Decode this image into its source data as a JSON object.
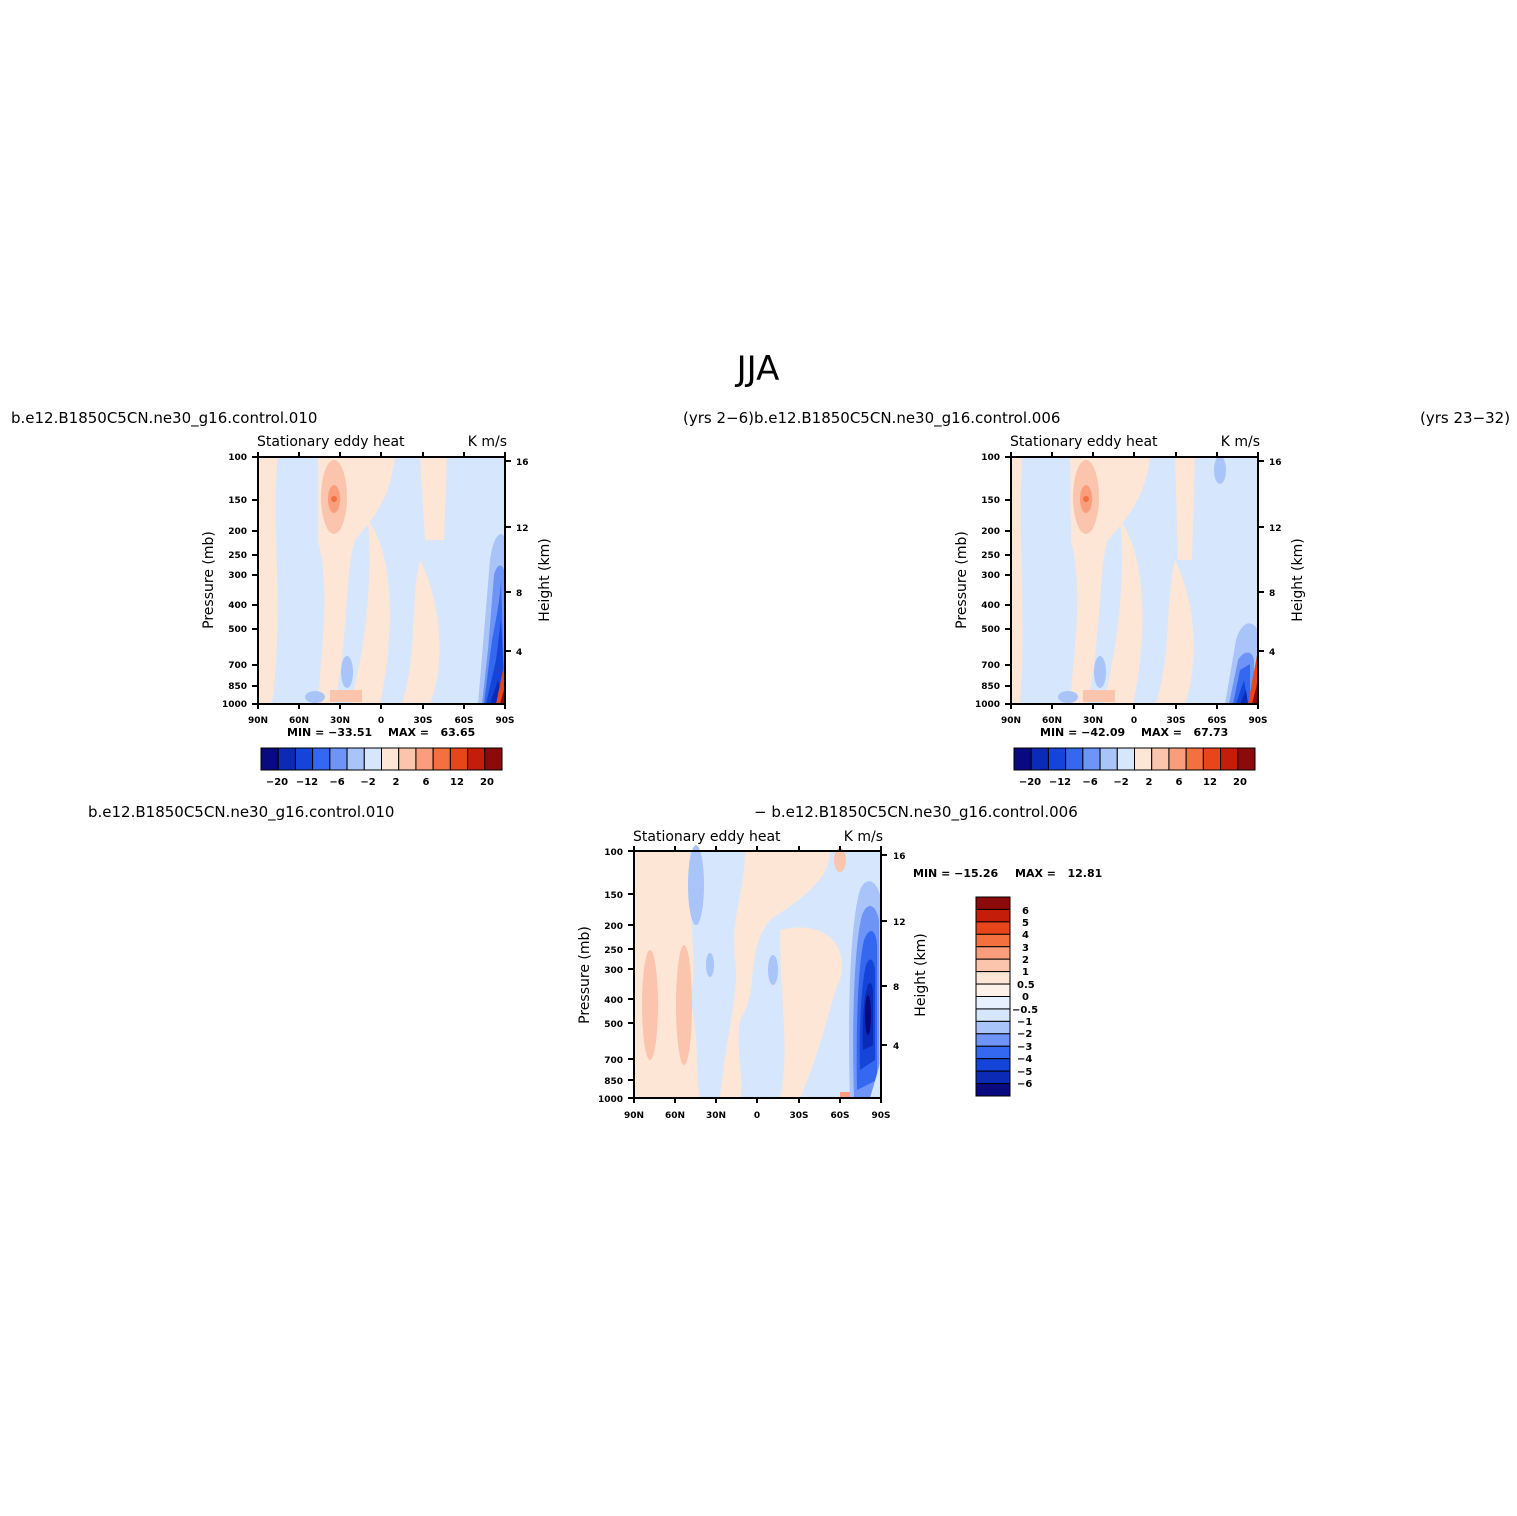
{
  "page": {
    "title": "JJA",
    "case_top_left": "b.e12.B1850C5CN.ne30_g16.control.010",
    "years_top_left": "(yrs 2−6)",
    "case_top_right": "b.e12.B1850C5CN.ne30_g16.control.006",
    "years_top_right": "(yrs 23−32)",
    "case_diff_left": "b.e12.B1850C5CN.ne30_g16.control.010",
    "case_diff_right": "− b.e12.B1850C5CN.ne30_g16.control.006"
  },
  "colors": {
    "palette13": [
      "#0a0a80",
      "#0b2ab5",
      "#1445d8",
      "#3568f0",
      "#6d94f6",
      "#a8c4f8",
      "#d6e6fd",
      "#fde6d6",
      "#fbc5ad",
      "#f99d7c",
      "#f4703e",
      "#e9451a",
      "#c41d0a",
      "#8c0a0a"
    ],
    "panel_bg_fill": "#d6e6fd"
  },
  "chart_data": [
    {
      "type": "heatmap",
      "panel": "top-left",
      "title": "Stationary eddy heat",
      "units": "K m/s",
      "xlabel": "",
      "ylabel": "Pressure (mb)",
      "y2label": "Height (km)",
      "x_ticks": [
        "90N",
        "60N",
        "30N",
        "0",
        "30S",
        "60S",
        "90S"
      ],
      "y_ticks": [
        "100",
        "150",
        "200",
        "250",
        "300",
        "400",
        "500",
        "700",
        "850",
        "1000"
      ],
      "y2_ticks": [
        "16",
        "12",
        "8",
        "4"
      ],
      "xlim": [
        90,
        -90
      ],
      "ylim": [
        1000,
        100
      ],
      "y_scale": "log",
      "min_label": "MIN = −33.51",
      "max_label": "MAX =   63.65",
      "min": -33.51,
      "max": 63.65,
      "colorbar_orientation": "horizontal",
      "colorbar_ticks": [
        "−20",
        "−12",
        "−6",
        "−2",
        "2",
        "6",
        "12",
        "20"
      ]
    },
    {
      "type": "heatmap",
      "panel": "top-right",
      "title": "Stationary eddy heat",
      "units": "K m/s",
      "xlabel": "",
      "ylabel": "Pressure (mb)",
      "y2label": "Height (km)",
      "x_ticks": [
        "90N",
        "60N",
        "30N",
        "0",
        "30S",
        "60S",
        "90S"
      ],
      "y_ticks": [
        "100",
        "150",
        "200",
        "250",
        "300",
        "400",
        "500",
        "700",
        "850",
        "1000"
      ],
      "y2_ticks": [
        "16",
        "12",
        "8",
        "4"
      ],
      "xlim": [
        90,
        -90
      ],
      "ylim": [
        1000,
        100
      ],
      "y_scale": "log",
      "min_label": "MIN = −42.09",
      "max_label": "MAX =   67.73",
      "min": -42.09,
      "max": 67.73,
      "colorbar_orientation": "horizontal",
      "colorbar_ticks": [
        "−20",
        "−12",
        "−6",
        "−2",
        "2",
        "6",
        "12",
        "20"
      ]
    },
    {
      "type": "heatmap",
      "panel": "difference",
      "title": "Stationary eddy heat",
      "units": "K m/s",
      "xlabel": "",
      "ylabel": "Pressure (mb)",
      "y2label": "Height (km)",
      "x_ticks": [
        "90N",
        "60N",
        "30N",
        "0",
        "30S",
        "60S",
        "90S"
      ],
      "y_ticks": [
        "100",
        "150",
        "200",
        "250",
        "300",
        "400",
        "500",
        "700",
        "850",
        "1000"
      ],
      "y2_ticks": [
        "16",
        "12",
        "8",
        "4"
      ],
      "xlim": [
        90,
        -90
      ],
      "ylim": [
        1000,
        100
      ],
      "y_scale": "log",
      "min_label": "MIN = −15.26",
      "max_label": "MAX =   12.81",
      "min": -15.26,
      "max": 12.81,
      "colorbar_orientation": "vertical",
      "colorbar_ticks": [
        "6",
        "5",
        "4",
        "3",
        "2",
        "1",
        "0.5",
        "0",
        "−0.5",
        "−1",
        "−2",
        "−3",
        "−4",
        "−5",
        "−6"
      ]
    }
  ]
}
